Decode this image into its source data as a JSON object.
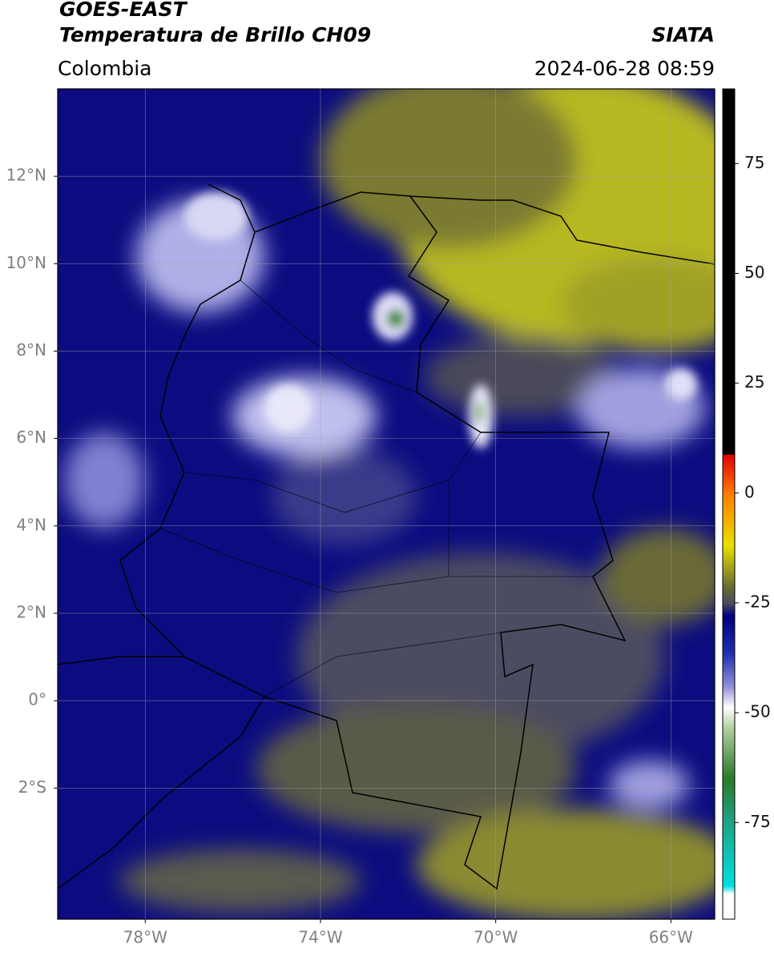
{
  "header": {
    "title_line1": "GOES-EAST",
    "title_line2": "Temperatura de Brillo CH09",
    "source": "SIATA",
    "region": "Colombia",
    "datetime": "2024-06-28 08:59"
  },
  "map": {
    "lon_range": [
      -80,
      -65
    ],
    "lat_range": [
      -5,
      14
    ],
    "grid": true,
    "lon_ticks": [
      {
        "value": -78,
        "label": "78°W"
      },
      {
        "value": -74,
        "label": "74°W"
      },
      {
        "value": -70,
        "label": "70°W"
      },
      {
        "value": -66,
        "label": "66°W"
      }
    ],
    "lat_ticks": [
      {
        "value": 12,
        "label": "12°N"
      },
      {
        "value": 10,
        "label": "10°N"
      },
      {
        "value": 8,
        "label": "8°N"
      },
      {
        "value": 6,
        "label": "6°N"
      },
      {
        "value": 4,
        "label": "4°N"
      },
      {
        "value": 2,
        "label": "2°N"
      },
      {
        "value": 0,
        "label": "0°"
      },
      {
        "value": -2,
        "label": "2°S"
      }
    ]
  },
  "colorbar": {
    "range": [
      -97,
      92
    ],
    "ticks": [
      75,
      50,
      25,
      0,
      -25,
      -50,
      -75
    ]
  }
}
